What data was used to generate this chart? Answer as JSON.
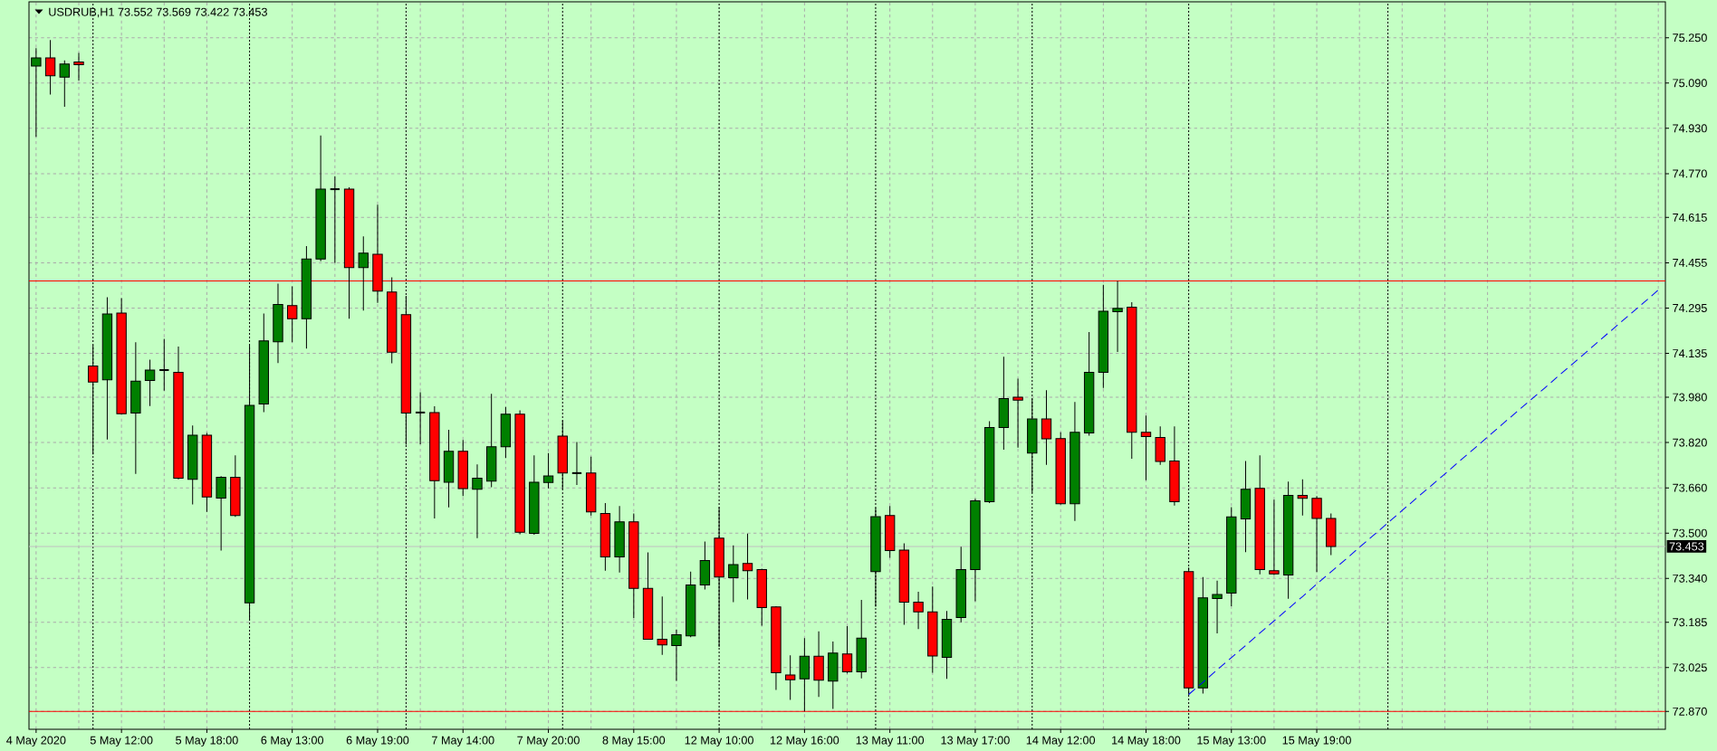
{
  "chart_data": {
    "type": "candlestick",
    "title": "USDRUB,H1 73.552 73.569 73.422 73.453",
    "categories": [
      "4 May 2020",
      null,
      null,
      null,
      null,
      null,
      "5 May 12:00",
      null,
      null,
      null,
      null,
      null,
      "5 May 18:00",
      null,
      null,
      null,
      null,
      null,
      "6 May 13:00",
      null,
      null,
      null,
      null,
      null,
      "6 May 19:00",
      null,
      null,
      null,
      null,
      null,
      "7 May 14:00",
      null,
      null,
      null,
      null,
      null,
      "7 May 20:00",
      null,
      null,
      null,
      null,
      null,
      "8 May 15:00",
      null,
      null,
      null,
      null,
      null,
      "12 May 10:00",
      null,
      null,
      null,
      null,
      null,
      "12 May 16:00",
      null,
      null,
      null,
      null,
      null,
      "13 May 11:00",
      null,
      null,
      null,
      null,
      null,
      "13 May 17:00",
      null,
      null,
      null,
      null,
      null,
      "14 May 12:00",
      null,
      null,
      null,
      null,
      null,
      "14 May 18:00",
      null,
      null,
      null,
      null,
      null,
      "15 May 13:00",
      null,
      null,
      null,
      null,
      null,
      "15 May 19:00",
      null,
      null,
      null,
      null,
      null,
      null,
      null,
      null,
      null,
      null,
      null,
      null,
      null,
      null,
      null,
      null,
      null,
      null,
      null,
      null,
      null,
      null,
      null,
      null
    ],
    "ohlc": [
      [
        75.15,
        75.213,
        74.9,
        75.179
      ],
      [
        75.179,
        75.242,
        75.049,
        75.116
      ],
      [
        75.111,
        75.17,
        75.006,
        75.157
      ],
      [
        75.164,
        75.196,
        75.099,
        75.155
      ],
      [
        74.09,
        74.164,
        73.778,
        74.034
      ],
      [
        74.042,
        74.333,
        73.831,
        74.274
      ],
      [
        74.277,
        74.33,
        73.919,
        73.922
      ],
      [
        73.924,
        74.174,
        73.709,
        74.037
      ],
      [
        74.039,
        74.113,
        73.949,
        74.076
      ],
      [
        74.076,
        74.186,
        74.003,
        74.076
      ],
      [
        74.068,
        74.159,
        73.69,
        73.694
      ],
      [
        73.69,
        73.88,
        73.601,
        73.846
      ],
      [
        73.846,
        73.854,
        73.575,
        73.628
      ],
      [
        73.624,
        73.701,
        73.438,
        73.697
      ],
      [
        73.697,
        73.775,
        73.557,
        73.562
      ],
      [
        73.254,
        74.164,
        73.191,
        73.951
      ],
      [
        73.956,
        74.276,
        73.927,
        74.179
      ],
      [
        74.176,
        74.381,
        74.101,
        74.308
      ],
      [
        74.304,
        74.372,
        74.174,
        74.257
      ],
      [
        74.257,
        74.514,
        74.152,
        74.468
      ],
      [
        74.468,
        74.905,
        74.46,
        74.715
      ],
      [
        74.715,
        74.761,
        74.455,
        74.715
      ],
      [
        74.715,
        74.722,
        74.257,
        74.438
      ],
      [
        74.438,
        74.548,
        74.286,
        74.489
      ],
      [
        74.485,
        74.66,
        74.313,
        74.355
      ],
      [
        74.352,
        74.404,
        74.1,
        74.139
      ],
      [
        74.272,
        74.338,
        73.812,
        73.924
      ],
      [
        73.926,
        73.998,
        73.814,
        73.926
      ],
      [
        73.926,
        73.948,
        73.552,
        73.685
      ],
      [
        73.68,
        73.865,
        73.591,
        73.789
      ],
      [
        73.789,
        73.829,
        73.631,
        73.657
      ],
      [
        73.655,
        73.743,
        73.482,
        73.694
      ],
      [
        73.684,
        73.992,
        73.662,
        73.805
      ],
      [
        73.805,
        73.946,
        73.765,
        73.92
      ],
      [
        73.92,
        73.934,
        73.496,
        73.503
      ],
      [
        73.499,
        73.775,
        73.494,
        73.68
      ],
      [
        73.679,
        73.783,
        73.658,
        73.702
      ],
      [
        73.843,
        73.898,
        73.655,
        73.712
      ],
      [
        73.712,
        73.822,
        73.67,
        73.712
      ],
      [
        73.712,
        73.77,
        73.562,
        73.575
      ],
      [
        73.569,
        73.606,
        73.367,
        73.416
      ],
      [
        73.416,
        73.596,
        73.361,
        73.54
      ],
      [
        73.54,
        73.569,
        73.2,
        73.305
      ],
      [
        73.305,
        73.432,
        73.125,
        73.125
      ],
      [
        73.125,
        73.276,
        73.07,
        73.105
      ],
      [
        73.103,
        73.159,
        72.978,
        73.141
      ],
      [
        73.137,
        73.364,
        73.132,
        73.317
      ],
      [
        73.317,
        73.47,
        73.301,
        73.403
      ],
      [
        73.482,
        73.592,
        73.098,
        73.345
      ],
      [
        73.342,
        73.457,
        73.256,
        73.389
      ],
      [
        73.393,
        73.498,
        73.266,
        73.367
      ],
      [
        73.371,
        73.374,
        73.173,
        73.237
      ],
      [
        73.239,
        73.242,
        72.946,
        73.007
      ],
      [
        72.999,
        73.068,
        72.911,
        72.982
      ],
      [
        72.985,
        73.129,
        72.87,
        73.065
      ],
      [
        73.065,
        73.153,
        72.921,
        72.98
      ],
      [
        72.977,
        73.117,
        72.879,
        73.076
      ],
      [
        73.073,
        73.171,
        73.004,
        73.01
      ],
      [
        73.01,
        73.264,
        72.987,
        73.129
      ],
      [
        73.364,
        73.589,
        73.24,
        73.558
      ],
      [
        73.562,
        73.596,
        73.413,
        73.438
      ],
      [
        73.44,
        73.464,
        73.176,
        73.256
      ],
      [
        73.256,
        73.293,
        73.161,
        73.222
      ],
      [
        73.222,
        73.311,
        73.007,
        73.066
      ],
      [
        73.061,
        73.225,
        72.985,
        73.195
      ],
      [
        73.202,
        73.452,
        73.185,
        73.371
      ],
      [
        73.371,
        73.621,
        73.259,
        73.614
      ],
      [
        73.611,
        73.895,
        73.606,
        73.873
      ],
      [
        73.873,
        74.123,
        73.795,
        73.975
      ],
      [
        73.98,
        74.046,
        73.802,
        73.97
      ],
      [
        73.783,
        73.975,
        73.643,
        73.903
      ],
      [
        73.903,
        74.005,
        73.741,
        73.833
      ],
      [
        73.834,
        73.856,
        73.601,
        73.604
      ],
      [
        73.604,
        73.963,
        73.543,
        73.856
      ],
      [
        73.854,
        74.21,
        73.844,
        74.068
      ],
      [
        74.068,
        74.377,
        74.013,
        74.284
      ],
      [
        74.282,
        74.391,
        74.14,
        74.294
      ],
      [
        74.298,
        74.316,
        73.763,
        73.856
      ],
      [
        73.856,
        73.915,
        73.687,
        73.841
      ],
      [
        73.838,
        73.877,
        73.741,
        73.753
      ],
      [
        73.755,
        73.877,
        73.597,
        73.611
      ],
      [
        73.364,
        73.378,
        72.929,
        72.953
      ],
      [
        72.953,
        73.345,
        72.933,
        73.271
      ],
      [
        73.269,
        73.332,
        73.146,
        73.283
      ],
      [
        73.288,
        73.592,
        73.242,
        73.557
      ],
      [
        73.55,
        73.755,
        73.433,
        73.655
      ],
      [
        73.658,
        73.775,
        73.354,
        73.371
      ],
      [
        73.367,
        73.618,
        73.352,
        73.356
      ],
      [
        73.352,
        73.682,
        73.268,
        73.633
      ],
      [
        73.633,
        73.69,
        73.562,
        73.623
      ],
      [
        73.623,
        73.631,
        73.362,
        73.552
      ],
      [
        73.552,
        73.569,
        73.422,
        73.453
      ],
      null,
      null,
      null,
      null,
      null,
      null,
      null,
      null,
      null,
      null,
      null,
      null,
      null,
      null,
      null,
      null,
      null,
      null,
      null,
      null,
      null,
      null,
      null
    ],
    "colors": [
      "#008000",
      "#ff0000",
      "#008000",
      "#ff0000",
      "#ff0000",
      "#008000",
      "#ff0000",
      "#008000",
      "#008000",
      "#000000",
      "#ff0000",
      "#008000",
      "#ff0000",
      "#008000",
      "#ff0000",
      "#008000",
      "#008000",
      "#008000",
      "#ff0000",
      "#008000",
      "#008000",
      "#000000",
      "#ff0000",
      "#008000",
      "#ff0000",
      "#ff0000",
      "#ff0000",
      "#000000",
      "#ff0000",
      "#008000",
      "#ff0000",
      "#008000",
      "#008000",
      "#008000",
      "#ff0000",
      "#008000",
      "#008000",
      "#ff0000",
      "#000000",
      "#ff0000",
      "#ff0000",
      "#008000",
      "#ff0000",
      "#ff0000",
      "#ff0000",
      "#008000",
      "#008000",
      "#008000",
      "#ff0000",
      "#008000",
      "#ff0000",
      "#ff0000",
      "#ff0000",
      "#ff0000",
      "#008000",
      "#ff0000",
      "#008000",
      "#ff0000",
      "#008000",
      "#008000",
      "#ff0000",
      "#ff0000",
      "#ff0000",
      "#ff0000",
      "#008000",
      "#008000",
      "#008000",
      "#008000",
      "#008000",
      "#ff0000",
      "#008000",
      "#ff0000",
      "#ff0000",
      "#008000",
      "#008000",
      "#008000",
      "#008000",
      "#ff0000",
      "#ff0000",
      "#ff0000",
      "#ff0000",
      "#ff0000",
      "#008000",
      "#008000",
      "#008000",
      "#008000",
      "#ff0000",
      "#ff0000",
      "#008000",
      "#ff0000",
      "#ff0000",
      "#ff0000",
      null,
      null,
      null,
      null,
      null,
      null,
      null,
      null,
      null,
      null,
      null,
      null,
      null,
      null,
      null,
      null,
      null,
      null,
      null,
      null,
      null,
      null,
      null
    ],
    "ylim": [
      72.807,
      75.377
    ],
    "yticks": [
      {
        "value": 75.25,
        "label": "75.250"
      },
      {
        "value": 75.09,
        "label": "75.090"
      },
      {
        "value": 74.93,
        "label": "74.930"
      },
      {
        "value": 74.77,
        "label": "74.770"
      },
      74.615,
      74.455,
      74.295,
      74.135,
      {
        "value": 73.98,
        "label": "73.980"
      },
      {
        "value": 73.82,
        "label": "73.820"
      },
      {
        "value": 73.66,
        "label": "73.660"
      },
      {
        "value": 73.5,
        "label": "73.500"
      },
      {
        "value": 73.34,
        "label": "73.340"
      },
      73.185,
      73.025,
      {
        "value": 72.87,
        "label": "72.870"
      }
    ],
    "grid": true,
    "ref_lines": [
      {
        "axis": "y",
        "value": 74.391,
        "color": "#ff0000"
      },
      {
        "axis": "y",
        "value": 72.87,
        "color": "#ff0000"
      },
      {
        "axis": "y",
        "value": 73.453,
        "label": "73.453",
        "color": "#c0c0c0"
      }
    ],
    "series": [
      {
        "type": "line",
        "color": "#0000ff",
        "line_style": "dashed",
        "values": [
          null,
          null,
          null,
          null,
          null,
          null,
          null,
          null,
          null,
          null,
          null,
          null,
          null,
          null,
          null,
          null,
          null,
          null,
          null,
          null,
          null,
          null,
          null,
          null,
          null,
          null,
          null,
          null,
          null,
          null,
          null,
          null,
          null,
          null,
          null,
          null,
          null,
          null,
          null,
          null,
          null,
          null,
          null,
          null,
          null,
          null,
          null,
          null,
          null,
          null,
          null,
          null,
          null,
          null,
          null,
          null,
          null,
          null,
          null,
          null,
          null,
          null,
          null,
          null,
          null,
          null,
          null,
          null,
          null,
          null,
          null,
          null,
          null,
          null,
          null,
          null,
          null,
          null,
          null,
          null,
          null,
          72.93,
          72.973,
          73.017,
          73.06,
          73.103,
          73.147,
          73.19,
          73.233,
          73.276,
          73.32,
          73.363,
          73.406,
          73.45,
          73.493,
          73.536,
          73.58,
          73.623,
          73.666,
          73.709,
          73.753,
          73.796,
          73.839,
          73.883,
          73.926,
          73.969,
          74.012,
          74.056,
          74.099,
          74.142,
          74.186,
          74.229,
          74.272,
          74.315,
          74.359
        ]
      }
    ]
  }
}
